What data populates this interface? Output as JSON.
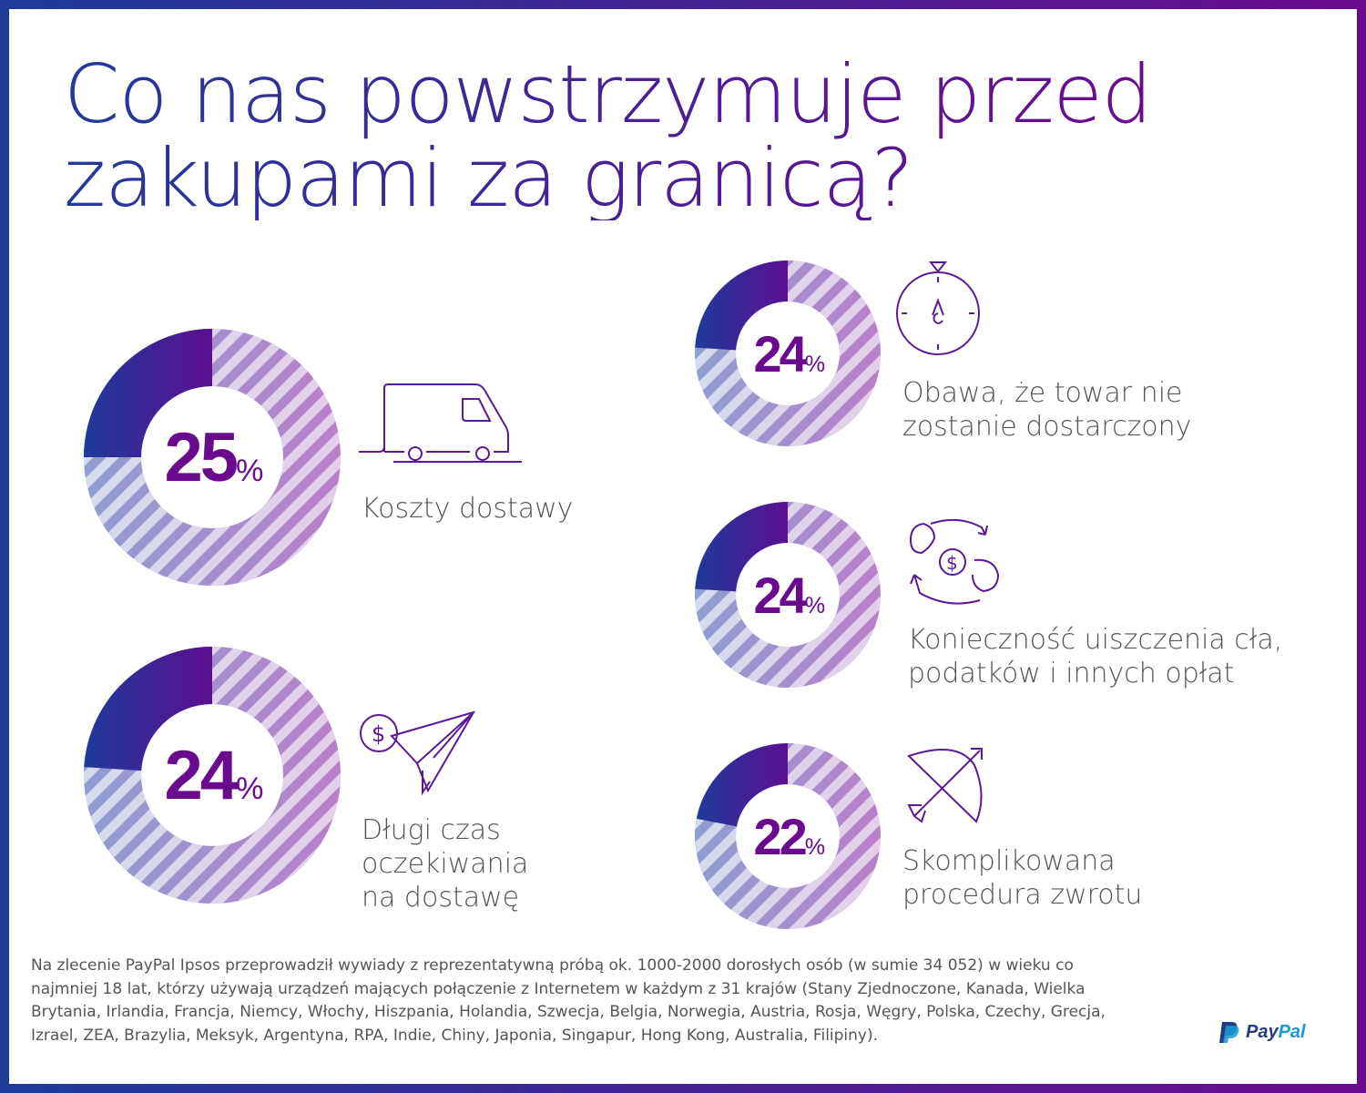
{
  "title_line1": "Co nas powstrzymuje przed",
  "title_line2": "zakupami za granicą?",
  "chart_data": {
    "type": "pie",
    "unit": "%",
    "items": [
      {
        "label": "Koszty dostawy",
        "value": 25,
        "icon": "delivery-van-icon"
      },
      {
        "label": "Długi czas oczekiwania na dostawę",
        "value": 24,
        "icon": "paper-plane-dollar-icon"
      },
      {
        "label": "Obawa, że towar nie zostanie dostarczony",
        "value": 24,
        "icon": "stopwatch-icon"
      },
      {
        "label": "Konieczność uiszczenia cła, podatków i innych opłat",
        "value": 24,
        "icon": "currency-exchange-icon"
      },
      {
        "label": "Skomplikowana procedura zwrotu",
        "value": 22,
        "icon": "bow-arrow-icon"
      }
    ],
    "colors": {
      "filled_start": "#1f3a9a",
      "filled_end": "#5c0f90",
      "remainder_start": "#8f9ed0",
      "remainder_end": "#ba7fc9"
    }
  },
  "labels": {
    "l0": [
      "Koszty dostawy"
    ],
    "l1": [
      "Długi czas",
      "oczekiwania",
      "na dostawę"
    ],
    "l2": [
      "Obawa, że towar nie",
      "zostanie dostarczony"
    ],
    "l3": [
      "Konieczność uiszczenia cła,",
      "podatków i innych opłat"
    ],
    "l4": [
      "Skomplikowana",
      "procedura zwrotu"
    ]
  },
  "percent_sign": "%",
  "footnote": "Na zlecenie PayPal Ipsos przeprowadził wywiady z reprezentatywną próbą ok. 1000-2000 dorosłych osób (w sumie 34 052) w wieku co najmniej 18 lat, którzy używają urządzeń mających połączenie z Internetem w każdym z 31 krajów (Stany Zjednoczone, Kanada, Wielka Brytania, Irlandia, Francja, Niemcy, Włochy, Hiszpania, Holandia, Szwecja, Belgia, Norwegia, Austria, Rosja, Węgry, Polska, Czechy, Grecja, Izrael, ZEA, Brazylia, Meksyk, Argentyna, RPA, Indie, Chiny, Japonia, Singapur, Hong Kong, Australia, Filipiny).",
  "logo": {
    "pay": "Pay",
    "pal": "Pal"
  }
}
